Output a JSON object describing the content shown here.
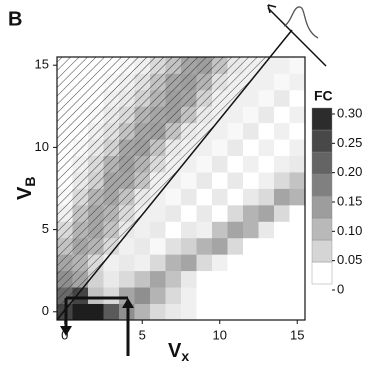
{
  "chart_data": {
    "type": "heatmap",
    "panel_label": "B",
    "x": [
      0,
      1,
      2,
      3,
      4,
      5,
      6,
      7,
      8,
      9,
      10,
      11,
      12,
      13,
      14,
      15
    ],
    "y": [
      0,
      1,
      2,
      3,
      4,
      5,
      6,
      7,
      8,
      9,
      10,
      11,
      12,
      13,
      14,
      15
    ],
    "z": [
      [
        0.25,
        0.3,
        0.3,
        0.22,
        0.15,
        0.1,
        0.05,
        0.03,
        0.02,
        0,
        0,
        0,
        0,
        0,
        0,
        0
      ],
      [
        0.2,
        0.25,
        0.08,
        0.05,
        0.12,
        0.15,
        0.1,
        0.05,
        0.02,
        0,
        0,
        0,
        0,
        0,
        0,
        0
      ],
      [
        0.15,
        0.12,
        0.06,
        0.03,
        0.05,
        0.08,
        0.12,
        0.08,
        0.03,
        0,
        0,
        0,
        0,
        0,
        0,
        0
      ],
      [
        0.12,
        0.1,
        0.05,
        0.02,
        0.03,
        0.02,
        0.05,
        0.1,
        0.12,
        0.05,
        0.02,
        0,
        0,
        0,
        0,
        0
      ],
      [
        0.08,
        0.12,
        0.1,
        0.05,
        0.02,
        0.03,
        0.01,
        0.04,
        0.06,
        0.1,
        0.12,
        0.05,
        0,
        0,
        0,
        0
      ],
      [
        0.05,
        0.1,
        0.12,
        0.08,
        0.03,
        0.02,
        0.03,
        0,
        0.03,
        0.02,
        0.08,
        0.12,
        0.1,
        0.03,
        0,
        0
      ],
      [
        0.02,
        0.08,
        0.12,
        0.1,
        0.05,
        0.02,
        0.02,
        0.03,
        0,
        0.03,
        0,
        0.05,
        0.1,
        0.12,
        0.05,
        0
      ],
      [
        0.01,
        0.05,
        0.1,
        0.12,
        0.08,
        0.03,
        0.02,
        0.01,
        0.03,
        0,
        0.03,
        0,
        0.03,
        0.05,
        0.12,
        0.1
      ],
      [
        0,
        0.03,
        0.06,
        0.12,
        0.12,
        0.08,
        0.02,
        0.02,
        0.01,
        0.03,
        0,
        0.03,
        0,
        0.02,
        0.05,
        0.08
      ],
      [
        0,
        0.02,
        0.05,
        0.1,
        0.13,
        0.1,
        0.05,
        0.02,
        0.02,
        0.01,
        0.03,
        0,
        0.02,
        0,
        0.02,
        0.03
      ],
      [
        0,
        0.01,
        0.03,
        0.06,
        0.12,
        0.13,
        0.08,
        0.03,
        0.02,
        0.02,
        0.01,
        0.03,
        0,
        0.02,
        0,
        0.02
      ],
      [
        0,
        0,
        0.02,
        0.04,
        0.08,
        0.12,
        0.13,
        0.08,
        0.03,
        0.02,
        0.02,
        0.01,
        0.03,
        0,
        0.02,
        0
      ],
      [
        0,
        0,
        0.01,
        0.03,
        0.05,
        0.1,
        0.12,
        0.13,
        0.08,
        0.03,
        0.02,
        0.02,
        0.01,
        0.03,
        0,
        0.02
      ],
      [
        0,
        0,
        0,
        0.02,
        0.03,
        0.06,
        0.1,
        0.13,
        0.12,
        0.06,
        0.02,
        0.02,
        0.02,
        0.01,
        0.03,
        0
      ],
      [
        0,
        0,
        0,
        0.01,
        0.02,
        0.04,
        0.08,
        0.12,
        0.13,
        0.1,
        0.04,
        0.02,
        0.02,
        0.02,
        0.01,
        0.02
      ],
      [
        0,
        0,
        0,
        0,
        0.01,
        0.02,
        0.05,
        0.08,
        0.12,
        0.13,
        0.08,
        0.03,
        0.02,
        0.02,
        0.02,
        0.01
      ]
    ],
    "xlim": [
      -0.5,
      15.5
    ],
    "ylim": [
      -0.5,
      15.5
    ],
    "xticks": [
      0,
      5,
      10,
      15
    ],
    "yticks": [
      0,
      5,
      10,
      15
    ],
    "xlabel": "V",
    "xlabel_sub": "x",
    "ylabel": "V",
    "ylabel_sub": "B",
    "colorbar": {
      "title": "FC",
      "lim": [
        0,
        0.3
      ],
      "ticks": [
        {
          "value": 0.3,
          "label": "0.30"
        },
        0.25,
        {
          "value": 0.2,
          "label": "0.20"
        },
        0.15,
        {
          "value": 0.1,
          "label": "0.10"
        },
        0.05,
        0
      ]
    }
  }
}
